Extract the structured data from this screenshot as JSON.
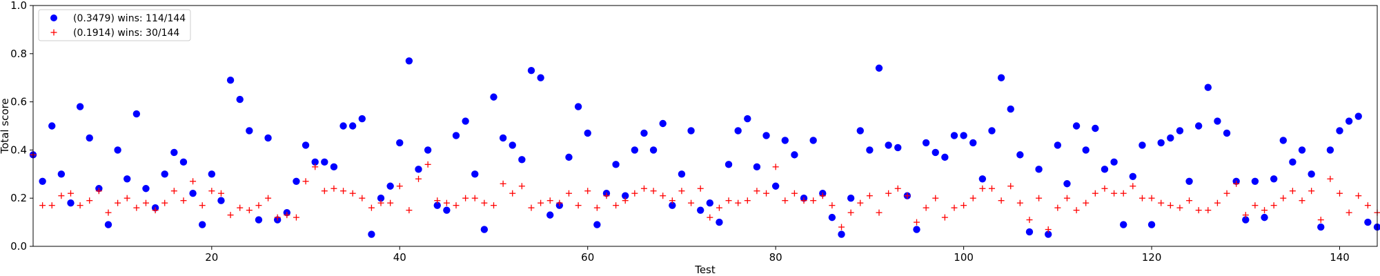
{
  "chart_data": {
    "type": "scatter",
    "xlabel": "Test",
    "ylabel": "Total score",
    "xlim": [
      1,
      144
    ],
    "ylim": [
      0,
      1.0
    ],
    "x_ticks": [
      20,
      40,
      60,
      80,
      100,
      120,
      140
    ],
    "y_ticks": [
      0.0,
      0.2,
      0.4,
      0.6,
      0.8,
      1.0
    ],
    "grid": false,
    "legend_position": "top-left",
    "x": [
      1,
      2,
      3,
      4,
      5,
      6,
      7,
      8,
      9,
      10,
      11,
      12,
      13,
      14,
      15,
      16,
      17,
      18,
      19,
      20,
      21,
      22,
      23,
      24,
      25,
      26,
      27,
      28,
      29,
      30,
      31,
      32,
      33,
      34,
      35,
      36,
      37,
      38,
      39,
      40,
      41,
      42,
      43,
      44,
      45,
      46,
      47,
      48,
      49,
      50,
      51,
      52,
      53,
      54,
      55,
      56,
      57,
      58,
      59,
      60,
      61,
      62,
      63,
      64,
      65,
      66,
      67,
      68,
      69,
      70,
      71,
      72,
      73,
      74,
      75,
      76,
      77,
      78,
      79,
      80,
      81,
      82,
      83,
      84,
      85,
      86,
      87,
      88,
      89,
      90,
      91,
      92,
      93,
      94,
      95,
      96,
      97,
      98,
      99,
      100,
      101,
      102,
      103,
      104,
      105,
      106,
      107,
      108,
      109,
      110,
      111,
      112,
      113,
      114,
      115,
      116,
      117,
      118,
      119,
      120,
      121,
      122,
      123,
      124,
      125,
      126,
      127,
      128,
      129,
      130,
      131,
      132,
      133,
      134,
      135,
      136,
      137,
      138,
      139,
      140,
      141,
      142,
      143,
      144
    ],
    "series": [
      {
        "name": "(0.3479) wins: 114/144",
        "marker": "circle",
        "color": "#0000ff",
        "values": [
          0.38,
          0.27,
          0.5,
          0.3,
          0.18,
          0.58,
          0.45,
          0.24,
          0.09,
          0.4,
          0.28,
          0.55,
          0.24,
          0.16,
          0.3,
          0.39,
          0.35,
          0.22,
          0.09,
          0.3,
          0.19,
          0.69,
          0.61,
          0.48,
          0.11,
          0.45,
          0.11,
          0.14,
          0.27,
          0.42,
          0.35,
          0.35,
          0.33,
          0.5,
          0.5,
          0.53,
          0.05,
          0.2,
          0.25,
          0.43,
          0.77,
          0.32,
          0.4,
          0.17,
          0.15,
          0.46,
          0.52,
          0.3,
          0.07,
          0.62,
          0.45,
          0.42,
          0.36,
          0.73,
          0.7,
          0.13,
          0.17,
          0.37,
          0.58,
          0.47,
          0.09,
          0.22,
          0.34,
          0.21,
          0.4,
          0.47,
          0.4,
          0.51,
          0.17,
          0.3,
          0.48,
          0.15,
          0.18,
          0.1,
          0.34,
          0.48,
          0.53,
          0.33,
          0.46,
          0.25,
          0.44,
          0.38,
          0.2,
          0.44,
          0.22,
          0.12,
          0.05,
          0.2,
          0.48,
          0.4,
          0.74,
          0.42,
          0.41,
          0.21,
          0.07,
          0.43,
          0.39,
          0.37,
          0.46,
          0.46,
          0.43,
          0.28,
          0.48,
          0.7,
          0.57,
          0.38,
          0.06,
          0.32,
          0.05,
          0.42,
          0.26,
          0.5,
          0.4,
          0.49,
          0.32,
          0.35,
          0.09,
          0.29,
          0.42,
          0.09,
          0.43,
          0.45,
          0.48,
          0.27,
          0.5,
          0.66,
          0.52,
          0.47,
          0.27,
          0.11,
          0.27,
          0.12,
          0.28,
          0.44,
          0.35,
          0.4,
          0.3,
          0.08,
          0.4,
          0.48,
          0.52,
          0.54,
          0.1,
          0.08
        ]
      },
      {
        "name": "(0.1914) wins: 30/144",
        "marker": "plus",
        "color": "#ff0000",
        "values": [
          0.38,
          0.17,
          0.17,
          0.21,
          0.22,
          0.17,
          0.19,
          0.23,
          0.14,
          0.18,
          0.2,
          0.16,
          0.18,
          0.15,
          0.18,
          0.23,
          0.19,
          0.27,
          0.17,
          0.23,
          0.22,
          0.13,
          0.16,
          0.15,
          0.17,
          0.2,
          0.12,
          0.13,
          0.12,
          0.27,
          0.33,
          0.23,
          0.24,
          0.23,
          0.22,
          0.2,
          0.16,
          0.18,
          0.18,
          0.25,
          0.15,
          0.28,
          0.34,
          0.19,
          0.18,
          0.17,
          0.2,
          0.2,
          0.18,
          0.17,
          0.26,
          0.22,
          0.25,
          0.16,
          0.18,
          0.19,
          0.18,
          0.22,
          0.17,
          0.23,
          0.16,
          0.21,
          0.17,
          0.19,
          0.22,
          0.24,
          0.23,
          0.21,
          0.19,
          0.23,
          0.18,
          0.24,
          0.12,
          0.16,
          0.19,
          0.18,
          0.19,
          0.23,
          0.22,
          0.33,
          0.19,
          0.22,
          0.19,
          0.19,
          0.21,
          0.17,
          0.08,
          0.14,
          0.18,
          0.21,
          0.14,
          0.22,
          0.24,
          0.21,
          0.1,
          0.16,
          0.2,
          0.12,
          0.16,
          0.17,
          0.2,
          0.24,
          0.24,
          0.19,
          0.25,
          0.18,
          0.11,
          0.2,
          0.07,
          0.16,
          0.2,
          0.15,
          0.18,
          0.22,
          0.24,
          0.22,
          0.22,
          0.25,
          0.2,
          0.2,
          0.18,
          0.17,
          0.16,
          0.19,
          0.15,
          0.15,
          0.18,
          0.22,
          0.26,
          0.13,
          0.17,
          0.15,
          0.17,
          0.2,
          0.23,
          0.19,
          0.23,
          0.11,
          0.28,
          0.22,
          0.14,
          0.21,
          0.17,
          0.14
        ]
      }
    ]
  }
}
